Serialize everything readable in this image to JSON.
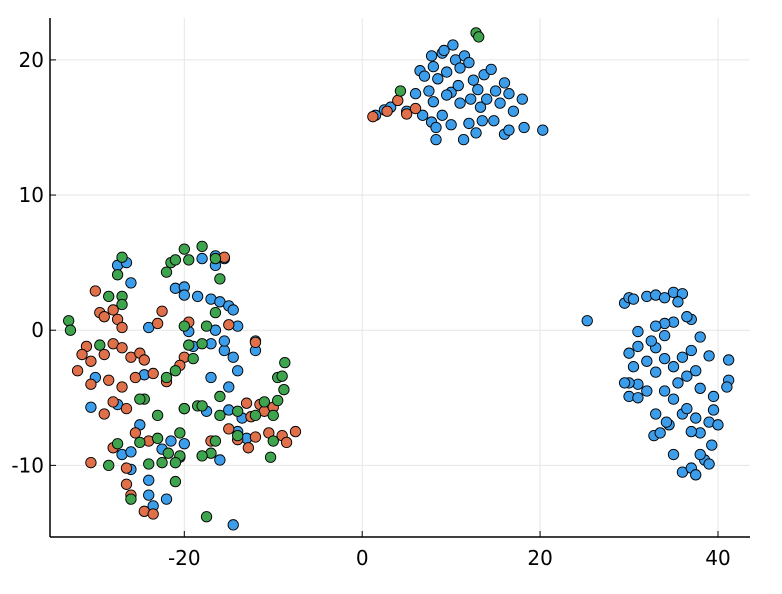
{
  "chart_data": {
    "type": "scatter",
    "title": "",
    "xlabel": "",
    "ylabel": "",
    "xlim": [
      -35.1,
      43.6
    ],
    "ylim": [
      -15.3,
      23.1
    ],
    "xticks": [
      -20,
      0,
      20,
      40
    ],
    "yticks": [
      -10,
      0,
      10,
      20
    ],
    "xtick_labels": [
      "-20",
      "0",
      "20",
      "40"
    ],
    "ytick_labels": [
      "-10",
      "0",
      "10",
      "20"
    ],
    "grid": true,
    "legend": "none",
    "marker_stroke": "#000000",
    "series": [
      {
        "color": "#3C9DEB",
        "points": [
          [
            1.5,
            15.9
          ],
          [
            2.5,
            16.3
          ],
          [
            3.2,
            16.5
          ],
          [
            5,
            16.2
          ],
          [
            6,
            17.5
          ],
          [
            6.5,
            19.2
          ],
          [
            7,
            18.8
          ],
          [
            7.5,
            17.7
          ],
          [
            7.8,
            20.3
          ],
          [
            8,
            19.5
          ],
          [
            8.3,
            14.1
          ],
          [
            8.5,
            18.6
          ],
          [
            9,
            20.5
          ],
          [
            9.2,
            20.7
          ],
          [
            9.5,
            19.1
          ],
          [
            10,
            17.6
          ],
          [
            10.2,
            21.1
          ],
          [
            10.5,
            20
          ],
          [
            11,
            19.4
          ],
          [
            11.5,
            20.3
          ],
          [
            12,
            19.8
          ],
          [
            12.2,
            17.1
          ],
          [
            12.5,
            18.5
          ],
          [
            13,
            17.8
          ],
          [
            13.3,
            16.5
          ],
          [
            13.7,
            18.9
          ],
          [
            14,
            17.1
          ],
          [
            14.5,
            19.3
          ],
          [
            15,
            17.7
          ],
          [
            15.5,
            16.8
          ],
          [
            16,
            18.3
          ],
          [
            16.5,
            17.5
          ],
          [
            17,
            16.2
          ],
          [
            18,
            17.1
          ],
          [
            18.2,
            15
          ],
          [
            20.3,
            14.8
          ],
          [
            16,
            14.5
          ],
          [
            14.8,
            15.5
          ],
          [
            11.4,
            14.1
          ],
          [
            9,
            15.9
          ],
          [
            7.8,
            15.4
          ],
          [
            8.3,
            15
          ],
          [
            10,
            15.2
          ],
          [
            12.8,
            14.6
          ],
          [
            13.5,
            15.5
          ],
          [
            6.8,
            15.9
          ],
          [
            11,
            16.8
          ],
          [
            9.5,
            17.4
          ],
          [
            8,
            16.9
          ],
          [
            16.5,
            14.8
          ],
          [
            12,
            15.3
          ],
          [
            10.8,
            18.1
          ],
          [
            25.3,
            0.7
          ],
          [
            29.5,
            2
          ],
          [
            30,
            2.4
          ],
          [
            30.5,
            2.3
          ],
          [
            32,
            2.5
          ],
          [
            33,
            2.6
          ],
          [
            34,
            2.4
          ],
          [
            35,
            2.8
          ],
          [
            36,
            2.7
          ],
          [
            35.5,
            2.1
          ],
          [
            37,
            0.8
          ],
          [
            36.5,
            1
          ],
          [
            35,
            0.6
          ],
          [
            34,
            0.5
          ],
          [
            33,
            0.3
          ],
          [
            31,
            -0.1
          ],
          [
            30,
            -1.7
          ],
          [
            31,
            -1.2
          ],
          [
            32,
            -2.3
          ],
          [
            33,
            -1.3
          ],
          [
            34,
            -2.1
          ],
          [
            35,
            -2.7
          ],
          [
            36,
            -2
          ],
          [
            37,
            -1.5
          ],
          [
            38,
            -0.5
          ],
          [
            39,
            -1.9
          ],
          [
            41.2,
            -2.2
          ],
          [
            41.2,
            -3.7
          ],
          [
            41,
            -4.2
          ],
          [
            39.5,
            -5.9
          ],
          [
            39,
            -6.8
          ],
          [
            38,
            -7.6
          ],
          [
            37.5,
            -6.5
          ],
          [
            36,
            -6.2
          ],
          [
            35,
            -5.1
          ],
          [
            34,
            -4.5
          ],
          [
            33,
            -3.1
          ],
          [
            32,
            -4.5
          ],
          [
            31,
            -4
          ],
          [
            30,
            -3.9
          ],
          [
            29.5,
            -3.9
          ],
          [
            30,
            -4.9
          ],
          [
            31,
            -5
          ],
          [
            33,
            -6.2
          ],
          [
            32.8,
            -7.8
          ],
          [
            33.5,
            -7.6
          ],
          [
            34.5,
            -7
          ],
          [
            35,
            -9.2
          ],
          [
            36,
            -10.5
          ],
          [
            37,
            -10.2
          ],
          [
            37.5,
            -10.7
          ],
          [
            38.5,
            -9.6
          ],
          [
            39,
            -9.9
          ],
          [
            39.3,
            -8.5
          ],
          [
            38,
            -9.2
          ],
          [
            37,
            -7.5
          ],
          [
            36.5,
            -5.8
          ],
          [
            38,
            -4.3
          ],
          [
            39.5,
            -4.9
          ],
          [
            40,
            -7
          ],
          [
            34,
            -0.4
          ],
          [
            32.5,
            -0.8
          ],
          [
            36.5,
            -3.4
          ],
          [
            37.5,
            -3
          ],
          [
            35.5,
            -3.9
          ],
          [
            34.2,
            -6.8
          ],
          [
            30.5,
            -2.7
          ],
          [
            -27.5,
            4.8
          ],
          [
            -26.5,
            5
          ],
          [
            -26,
            3.5
          ],
          [
            -18,
            5.3
          ],
          [
            -16.5,
            5.5
          ],
          [
            -16.5,
            4.8
          ],
          [
            -15.5,
            5.3
          ],
          [
            -21,
            3.1
          ],
          [
            -20,
            3.2
          ],
          [
            -20,
            2.6
          ],
          [
            -18.5,
            2.5
          ],
          [
            -17,
            2.3
          ],
          [
            -16,
            2.1
          ],
          [
            -15,
            1.8
          ],
          [
            -14.5,
            1.5
          ],
          [
            -16.5,
            0
          ],
          [
            -14,
            0.3
          ],
          [
            -15.5,
            -1.5
          ],
          [
            -14.5,
            -2
          ],
          [
            -17,
            -3.5
          ],
          [
            -15,
            -4.2
          ],
          [
            -14,
            -3
          ],
          [
            -12,
            -1.5
          ],
          [
            -12,
            -0.8
          ],
          [
            -19.5,
            -0.1
          ],
          [
            -19,
            -1.2
          ],
          [
            -24,
            0.2
          ],
          [
            -30,
            -3.5
          ],
          [
            -30.5,
            -5.7
          ],
          [
            -27.5,
            -5.5
          ],
          [
            -27,
            -9.2
          ],
          [
            -26,
            -9
          ],
          [
            -25,
            -7
          ],
          [
            -24.5,
            -3.3
          ],
          [
            -22.5,
            -8.8
          ],
          [
            -21.5,
            -8.2
          ],
          [
            -20,
            -8.4
          ],
          [
            -20.5,
            -9.4
          ],
          [
            -22,
            -12.5
          ],
          [
            -24,
            -12.2
          ],
          [
            -23.5,
            -13
          ],
          [
            -24,
            -11.1
          ],
          [
            -14.5,
            -14.4
          ],
          [
            -14,
            -7.5
          ],
          [
            -13,
            -8
          ],
          [
            -13.5,
            -6.5
          ],
          [
            -15,
            -5.9
          ],
          [
            -16,
            -9.6
          ],
          [
            -26,
            -10.3
          ],
          [
            -17,
            -1
          ],
          [
            -20,
            -5.8
          ],
          [
            -17.5,
            -6
          ],
          [
            -15.5,
            -0.8
          ]
        ]
      },
      {
        "color": "#E0704A",
        "points": [
          [
            1.2,
            15.8
          ],
          [
            2.8,
            16.2
          ],
          [
            4,
            17
          ],
          [
            5,
            16
          ],
          [
            6,
            16.4
          ],
          [
            -30,
            2.9
          ],
          [
            -29.5,
            1.3
          ],
          [
            -29,
            1
          ],
          [
            -28,
            1.5
          ],
          [
            -27.5,
            0.8
          ],
          [
            -27,
            0.2
          ],
          [
            -28,
            -1
          ],
          [
            -27,
            -1.3
          ],
          [
            -26,
            -2
          ],
          [
            -25,
            -1.7
          ],
          [
            -24.5,
            -2.2
          ],
          [
            -29,
            -1.8
          ],
          [
            -30.5,
            -2.3
          ],
          [
            -31,
            -1.2
          ],
          [
            -31.5,
            -1.8
          ],
          [
            -32,
            -3
          ],
          [
            -30.5,
            -4
          ],
          [
            -28.5,
            -3.7
          ],
          [
            -27,
            -4.2
          ],
          [
            -25.5,
            -3.5
          ],
          [
            -23.5,
            -3.2
          ],
          [
            -22,
            -3.8
          ],
          [
            -20,
            -2
          ],
          [
            -20.5,
            -2.6
          ],
          [
            -19.5,
            0.6
          ],
          [
            -22.5,
            1.4
          ],
          [
            -23,
            0.5
          ],
          [
            -15.5,
            5.4
          ],
          [
            -15,
            0.4
          ],
          [
            -12,
            -0.9
          ],
          [
            -11.5,
            -5.5
          ],
          [
            -13,
            -5.4
          ],
          [
            -12.5,
            -6.4
          ],
          [
            -11,
            -6
          ],
          [
            -10,
            -5.7
          ],
          [
            -10.5,
            -7.6
          ],
          [
            -12,
            -7.9
          ],
          [
            -9,
            -7.8
          ],
          [
            -8.5,
            -8.3
          ],
          [
            -7.5,
            -7.5
          ],
          [
            -14,
            -8.1
          ],
          [
            -28,
            -5.3
          ],
          [
            -29,
            -6.2
          ],
          [
            -26.5,
            -5.8
          ],
          [
            -25.5,
            -7.6
          ],
          [
            -28,
            -8.7
          ],
          [
            -30.5,
            -9.8
          ],
          [
            -26.5,
            -10.2
          ],
          [
            -26.5,
            -11.4
          ],
          [
            -26,
            -12.2
          ],
          [
            -24.5,
            -13.4
          ],
          [
            -23.5,
            -13.6
          ],
          [
            -24,
            -8.2
          ],
          [
            -17,
            -8.2
          ],
          [
            -12.8,
            -8.7
          ],
          [
            -15,
            -7.3
          ]
        ]
      },
      {
        "color": "#3EA44E",
        "points": [
          [
            4.3,
            17.7
          ],
          [
            12.8,
            22
          ],
          [
            13.1,
            21.7
          ],
          [
            -33,
            0.7
          ],
          [
            -32.8,
            0
          ],
          [
            -27,
            5.4
          ],
          [
            -27.5,
            4.1
          ],
          [
            -27,
            2.5
          ],
          [
            -27,
            1.9
          ],
          [
            -28.5,
            2.5
          ],
          [
            -22,
            4.3
          ],
          [
            -21.5,
            5
          ],
          [
            -21,
            5.2
          ],
          [
            -20,
            6
          ],
          [
            -18,
            6.2
          ],
          [
            -16.5,
            5.3
          ],
          [
            -16,
            3.8
          ],
          [
            -19.5,
            5.2
          ],
          [
            -16.5,
            1.3
          ],
          [
            -17.5,
            0.3
          ],
          [
            -20,
            0.3
          ],
          [
            -19.5,
            -1.1
          ],
          [
            -18,
            -1
          ],
          [
            -19,
            -2.1
          ],
          [
            -21,
            -3
          ],
          [
            -22,
            -3.5
          ],
          [
            -29.5,
            -1.1
          ],
          [
            -24.5,
            -5.1
          ],
          [
            -23,
            -6.3
          ],
          [
            -20,
            -5.8
          ],
          [
            -18.5,
            -5.6
          ],
          [
            -18,
            -5.6
          ],
          [
            -16,
            -4.9
          ],
          [
            -16,
            -6.3
          ],
          [
            -14,
            -6
          ],
          [
            -12,
            -6.3
          ],
          [
            -10,
            -6.3
          ],
          [
            -11,
            -5.3
          ],
          [
            -9.5,
            -5.2
          ],
          [
            -9.5,
            -3.5
          ],
          [
            -9,
            -3.4
          ],
          [
            -8.7,
            -2.4
          ],
          [
            -8.8,
            -4.4
          ],
          [
            -10,
            -8.2
          ],
          [
            -10.3,
            -9.4
          ],
          [
            -14,
            -7.8
          ],
          [
            -16.5,
            -8.2
          ],
          [
            -17,
            -9.1
          ],
          [
            -18,
            -9.3
          ],
          [
            -20.5,
            -9.3
          ],
          [
            -21,
            -9.8
          ],
          [
            -22.5,
            -9.8
          ],
          [
            -24,
            -9.9
          ],
          [
            -21,
            -11.2
          ],
          [
            -17.5,
            -13.8
          ],
          [
            -23,
            -8
          ],
          [
            -25,
            -8.3
          ],
          [
            -27.5,
            -8.4
          ],
          [
            -28.5,
            -10
          ],
          [
            -26,
            -12.5
          ],
          [
            -25,
            -5.1
          ],
          [
            -20.5,
            -7.6
          ],
          [
            -21.8,
            -9.1
          ]
        ]
      }
    ]
  }
}
